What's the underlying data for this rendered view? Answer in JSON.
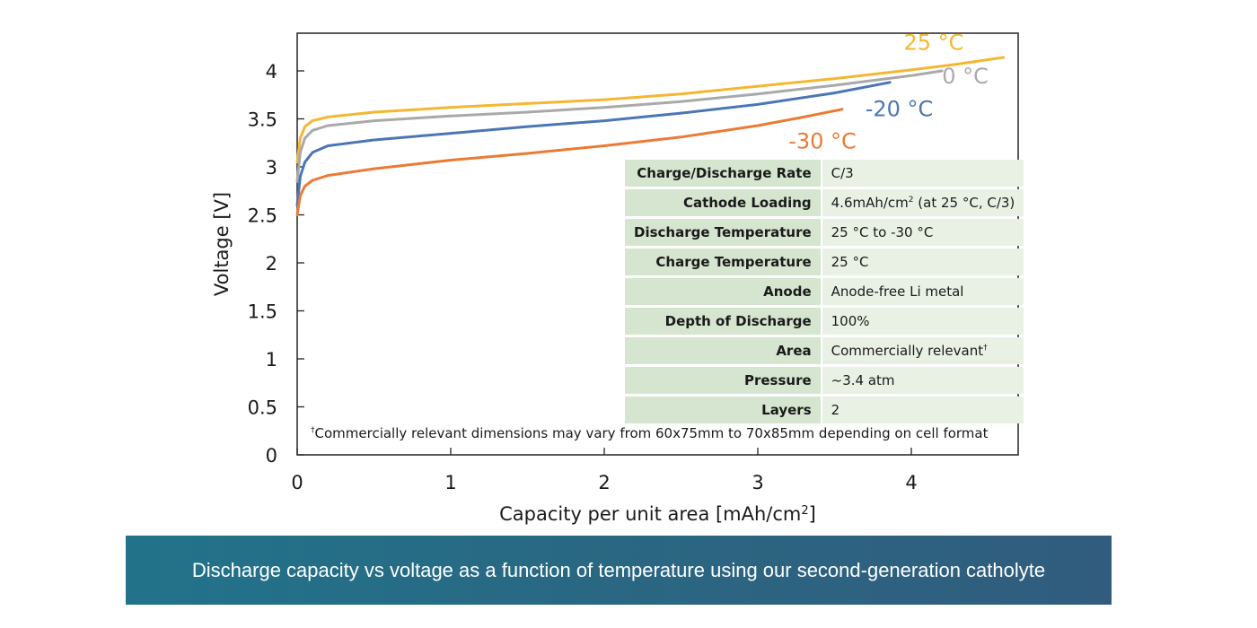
{
  "chart_data": {
    "type": "line",
    "xlabel": "Capacity per unit area [mAh/cm",
    "xlabel_sup": "2",
    "xlabel_end": "]",
    "ylabel": "Voltage [V]",
    "xlim": [
      0,
      4.7
    ],
    "ylim": [
      0,
      4.4
    ],
    "xticks": [
      0,
      1,
      2,
      3,
      4
    ],
    "yticks": [
      {
        "value": 0,
        "label": "0"
      },
      {
        "value": 0.5,
        "label": "0.5"
      },
      {
        "value": 1,
        "label": "1"
      },
      {
        "value": 1.5,
        "label": "1.5"
      },
      {
        "value": 2,
        "label": "2"
      },
      {
        "value": 2.5,
        "label": "2.5"
      },
      {
        "value": 3,
        "label": "3"
      },
      {
        "value": 3.5,
        "label": "3.5"
      },
      {
        "value": 4,
        "label": "4"
      }
    ],
    "series": [
      {
        "name": "25 °C",
        "color": "#f5b731",
        "label_at": [
          3.95,
          4.22
        ],
        "points": [
          [
            0,
            3.05
          ],
          [
            0.02,
            3.3
          ],
          [
            0.05,
            3.42
          ],
          [
            0.1,
            3.48
          ],
          [
            0.2,
            3.52
          ],
          [
            0.5,
            3.57
          ],
          [
            1,
            3.62
          ],
          [
            1.5,
            3.66
          ],
          [
            2,
            3.7
          ],
          [
            2.5,
            3.76
          ],
          [
            3,
            3.84
          ],
          [
            3.5,
            3.92
          ],
          [
            4,
            4.01
          ],
          [
            4.3,
            4.07
          ],
          [
            4.6,
            4.14
          ]
        ]
      },
      {
        "name": "0 °C",
        "color": "#a9a9a9",
        "label_at": [
          4.2,
          3.87
        ],
        "points": [
          [
            0,
            2.85
          ],
          [
            0.02,
            3.15
          ],
          [
            0.05,
            3.3
          ],
          [
            0.1,
            3.38
          ],
          [
            0.2,
            3.43
          ],
          [
            0.5,
            3.48
          ],
          [
            1,
            3.53
          ],
          [
            1.5,
            3.57
          ],
          [
            2,
            3.62
          ],
          [
            2.5,
            3.68
          ],
          [
            3,
            3.76
          ],
          [
            3.5,
            3.85
          ],
          [
            4,
            3.95
          ],
          [
            4.2,
            4.0
          ]
        ]
      },
      {
        "name": "-20 °C",
        "color": "#4b76b5",
        "label_at": [
          3.7,
          3.53
        ],
        "points": [
          [
            0,
            2.6
          ],
          [
            0.02,
            2.9
          ],
          [
            0.05,
            3.05
          ],
          [
            0.1,
            3.15
          ],
          [
            0.2,
            3.22
          ],
          [
            0.5,
            3.28
          ],
          [
            1,
            3.35
          ],
          [
            1.5,
            3.42
          ],
          [
            2,
            3.48
          ],
          [
            2.5,
            3.56
          ],
          [
            3,
            3.65
          ],
          [
            3.5,
            3.77
          ],
          [
            3.86,
            3.88
          ]
        ]
      },
      {
        "name": "-30 °C",
        "color": "#ec7a34",
        "label_at": [
          3.2,
          3.19
        ],
        "points": [
          [
            0,
            2.5
          ],
          [
            0.02,
            2.7
          ],
          [
            0.05,
            2.8
          ],
          [
            0.1,
            2.86
          ],
          [
            0.2,
            2.91
          ],
          [
            0.5,
            2.98
          ],
          [
            1,
            3.07
          ],
          [
            1.5,
            3.14
          ],
          [
            2,
            3.22
          ],
          [
            2.5,
            3.31
          ],
          [
            3,
            3.43
          ],
          [
            3.3,
            3.52
          ],
          [
            3.55,
            3.6
          ]
        ]
      }
    ]
  },
  "table": {
    "rows": [
      {
        "label": "Charge/Discharge Rate",
        "value": "C/3"
      },
      {
        "label": "Cathode Loading",
        "value": "4.6mAh/cm",
        "sup": "2",
        "value_end": " (at 25 °C, C/3)"
      },
      {
        "label": "Discharge Temperature",
        "value": "25 °C to -30 °C"
      },
      {
        "label": "Charge Temperature",
        "value": "25 °C"
      },
      {
        "label": "Anode",
        "value": "Anode-free Li metal"
      },
      {
        "label": "Depth of Discharge",
        "value": "100%"
      },
      {
        "label": "Area",
        "value": "Commercially relevant",
        "sup": "†"
      },
      {
        "label": "Pressure",
        "value": "~3.4 atm"
      },
      {
        "label": "Layers",
        "value": "2"
      }
    ]
  },
  "footnote": {
    "mark": "†",
    "text": "Commercially relevant dimensions may vary from 60x75mm to 70x85mm depending on cell format"
  },
  "caption": "Discharge capacity vs voltage as a function of temperature using our second-generation catholyte"
}
